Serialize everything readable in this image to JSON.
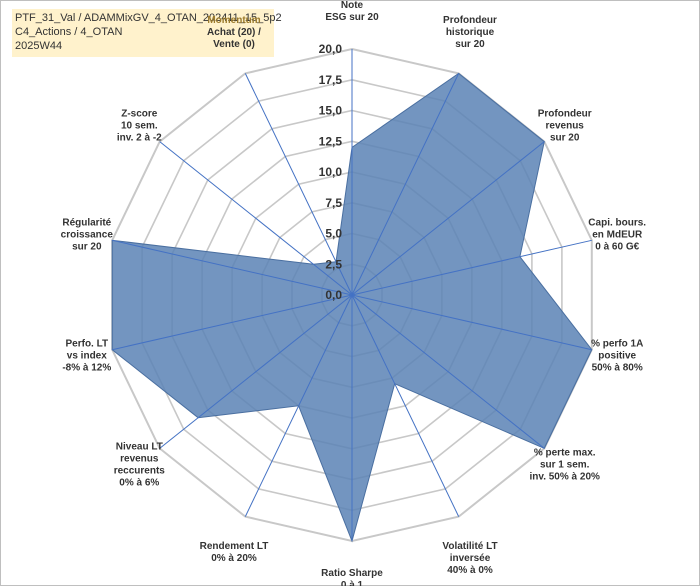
{
  "header": {
    "line1": "PTF_31_Val / ADAMMixGV_4_OTAN_202411_15_5p2",
    "line2": "C4_Actions / 4_OTAN",
    "line3": "2025W44"
  },
  "chart_data": {
    "type": "radar",
    "title": "PTF_31_Val / ADAMMixGV_4_OTAN_202411_15_5p2",
    "rlim": [
      0,
      20
    ],
    "ticks": [
      "0,0",
      "2,5",
      "5,0",
      "7,5",
      "10,0",
      "12,5",
      "15,0",
      "17,5",
      "20,0"
    ],
    "tick_values": [
      0,
      2.5,
      5,
      7.5,
      10,
      12.5,
      15,
      17.5,
      20
    ],
    "grid": true,
    "fill_color": "#5b82b5",
    "axis_color": "#4472c4",
    "grid_color": "#c8c8c8",
    "axes": [
      {
        "label": [
          "Note",
          "ESG sur 20"
        ],
        "value": 12
      },
      {
        "label": [
          "Profondeur",
          "historique",
          "sur 20"
        ],
        "value": 20
      },
      {
        "label": [
          "Profondeur",
          "revenus",
          "sur 20"
        ],
        "value": 20
      },
      {
        "label": [
          "Capi. bours.",
          "en MdEUR",
          "0 à 60 G€"
        ],
        "value": 14
      },
      {
        "label": [
          "% perfo 1A",
          "positive",
          "50% à 80%"
        ],
        "value": 20
      },
      {
        "label": [
          "% perte max.",
          "sur 1 sem.",
          "inv. 50% à 20%"
        ],
        "value": 20
      },
      {
        "label": [
          "Volatilité LT",
          "inversée",
          "40% à 0%"
        ],
        "value": 8
      },
      {
        "label": [
          "Ratio Sharpe",
          "0 à 1"
        ],
        "value": 20
      },
      {
        "label": [
          "Rendement LT",
          "0% à 20%"
        ],
        "value": 10
      },
      {
        "label": [
          "Niveau LT",
          "revenus",
          "reccurents",
          "0% à 6%"
        ],
        "value": 16
      },
      {
        "label": [
          "Perfo. LT",
          "vs index",
          "-8% à 12%"
        ],
        "value": 20
      },
      {
        "label": [
          "Régularité",
          "croissance",
          "sur 20"
        ],
        "value": 20
      },
      {
        "label": [
          "Z-score",
          "10 sem.",
          "inv. 2 à -2"
        ],
        "value": 4
      },
      {
        "label": [
          "Momentum",
          "Achat (20) /",
          "Vente (0)"
        ],
        "value": 3,
        "label_highlight": true
      }
    ]
  }
}
